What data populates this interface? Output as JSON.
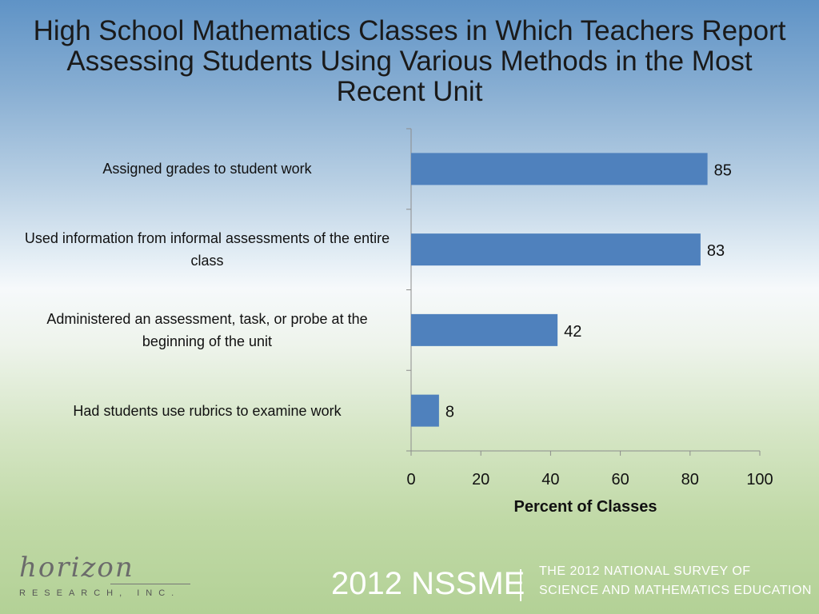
{
  "title": "High School Mathematics Classes in Which Teachers Report Assessing Students Using Various Methods in the Most Recent Unit",
  "chart_data": {
    "type": "bar",
    "orientation": "horizontal",
    "title": "High School Mathematics Classes in Which Teachers Report Assessing Students Using Various Methods in the Most Recent Unit",
    "xlabel": "Percent of Classes",
    "ylabel": "",
    "categories": [
      "Assigned grades to student work",
      "Used information from informal assessments of the entire class",
      "Administered an assessment, task, or probe at the beginning of the unit",
      "Had students use rubrics to examine work"
    ],
    "values": [
      85,
      83,
      42,
      8
    ],
    "xlim": [
      0,
      100
    ],
    "xticks": [
      0,
      20,
      40,
      60,
      80,
      100
    ],
    "grid": false,
    "legend": "none",
    "bar_color": "#4f81bd",
    "data_labels": true
  },
  "footer": {
    "logo_script": "horizon",
    "logo_sub": "RESEARCH, INC.",
    "year_label": "2012 NSSME",
    "line1": "THE 2012 NATIONAL SURVEY OF",
    "line2": "SCIENCE AND MATHEMATICS EDUCATION"
  }
}
